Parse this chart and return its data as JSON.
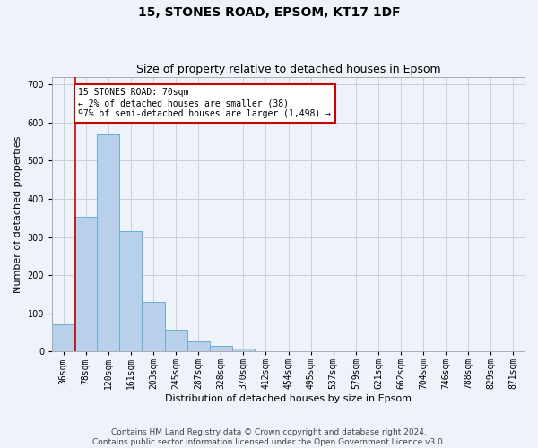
{
  "title": "15, STONES ROAD, EPSOM, KT17 1DF",
  "subtitle": "Size of property relative to detached houses in Epsom",
  "xlabel": "Distribution of detached houses by size in Epsom",
  "ylabel": "Number of detached properties",
  "categories": [
    "36sqm",
    "78sqm",
    "120sqm",
    "161sqm",
    "203sqm",
    "245sqm",
    "287sqm",
    "328sqm",
    "370sqm",
    "412sqm",
    "454sqm",
    "495sqm",
    "537sqm",
    "579sqm",
    "621sqm",
    "662sqm",
    "704sqm",
    "746sqm",
    "788sqm",
    "829sqm",
    "871sqm"
  ],
  "bar_values": [
    70,
    352,
    570,
    315,
    130,
    58,
    26,
    15,
    8,
    0,
    0,
    0,
    0,
    0,
    0,
    0,
    0,
    0,
    0,
    0,
    0
  ],
  "bar_color": "#b8d0ea",
  "bar_edge_color": "#6aadd5",
  "annotation_title": "15 STONES ROAD: 70sqm",
  "annotation_line1": "← 2% of detached houses are smaller (38)",
  "annotation_line2": "97% of semi-detached houses are larger (1,498) →",
  "annotation_box_color": "#ffffff",
  "annotation_box_edge_color": "#cc0000",
  "vline_color": "#cc0000",
  "vline_x_index": 0.52,
  "ylim": [
    0,
    720
  ],
  "yticks": [
    0,
    100,
    200,
    300,
    400,
    500,
    600,
    700
  ],
  "footer1": "Contains HM Land Registry data © Crown copyright and database right 2024.",
  "footer2": "Contains public sector information licensed under the Open Government Licence v3.0.",
  "background_color": "#eef2f9",
  "grid_color": "#c8d0de",
  "title_fontsize": 10,
  "subtitle_fontsize": 9,
  "axis_label_fontsize": 8,
  "tick_fontsize": 7,
  "annotation_fontsize": 7,
  "footer_fontsize": 6.5
}
